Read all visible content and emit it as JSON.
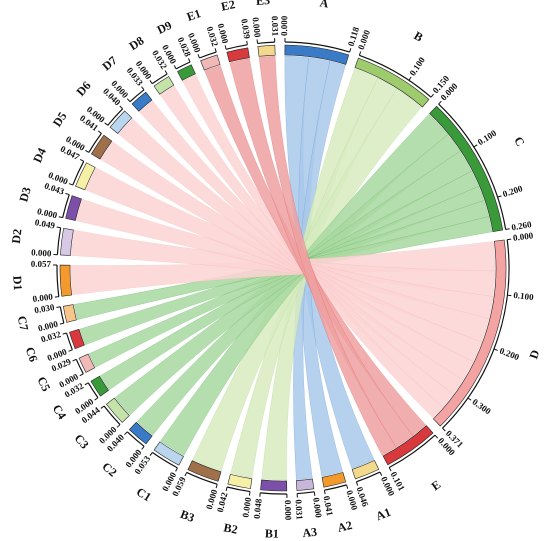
{
  "chart_data": {
    "type": "chord",
    "title": "",
    "layout": "single circle, clockwise from top; big groups A-E on the right, sub-indicators A1-E3 on the left",
    "groups": [
      {
        "name": "A",
        "color": "#3a7bc8",
        "fill": "#a9c9ea",
        "range": [
          0.0,
          0.118
        ],
        "ticks": [
          "0.000",
          "0.118"
        ],
        "major": true
      },
      {
        "name": "B",
        "color": "#9ecb6b",
        "fill": "#d7ebbf",
        "range": [
          0.0,
          0.15
        ],
        "ticks": [
          "0.000",
          "0.100",
          "0.150"
        ],
        "major": true
      },
      {
        "name": "C",
        "color": "#3a9a3a",
        "fill": "#a8d8a0",
        "range": [
          0.0,
          0.26
        ],
        "ticks": [
          "0.000",
          "0.100",
          "0.200",
          "0.260"
        ],
        "major": true
      },
      {
        "name": "D",
        "color": "#f4a3a3",
        "fill": "#fbd3d3",
        "range": [
          0.0,
          0.371
        ],
        "ticks": [
          "0.000",
          "0.100",
          "0.200",
          "0.300",
          "0.371"
        ],
        "major": true
      },
      {
        "name": "E",
        "color": "#d8393c",
        "fill": "#efa0a0",
        "range": [
          0.0,
          0.101
        ],
        "ticks": [
          "0.000",
          "0.101"
        ],
        "major": true
      },
      {
        "name": "A1",
        "color": "#f3d98c",
        "parent": "A",
        "range": [
          0.0,
          0.046
        ],
        "ticks": [
          "0.000",
          "0.046"
        ]
      },
      {
        "name": "A2",
        "color": "#f29a2e",
        "parent": "A",
        "range": [
          0.0,
          0.041
        ],
        "ticks": [
          "0.000",
          "0.041"
        ]
      },
      {
        "name": "A3",
        "color": "#c9b7d9",
        "parent": "A",
        "range": [
          0.0,
          0.031
        ],
        "ticks": [
          "0.000",
          "0.031"
        ]
      },
      {
        "name": "B1",
        "color": "#7c4fa8",
        "parent": "B",
        "range": [
          0.0,
          0.048
        ],
        "ticks": [
          "0.000",
          "0.048"
        ]
      },
      {
        "name": "B2",
        "color": "#f6efa6",
        "parent": "B",
        "range": [
          0.0,
          0.042
        ],
        "ticks": [
          "0.000",
          "0.042"
        ]
      },
      {
        "name": "B3",
        "color": "#a0704a",
        "parent": "B",
        "range": [
          0.0,
          0.059
        ],
        "ticks": [
          "0.000",
          "0.059"
        ]
      },
      {
        "name": "C1",
        "color": "#b9d6ee",
        "parent": "C",
        "range": [
          0.0,
          0.053
        ],
        "ticks": [
          "0.000",
          "0.053"
        ]
      },
      {
        "name": "C2",
        "color": "#3a7bc8",
        "parent": "C",
        "range": [
          0.0,
          0.04
        ],
        "ticks": [
          "0.000",
          "0.040"
        ]
      },
      {
        "name": "C3",
        "color": "#c3e3a8",
        "parent": "C",
        "range": [
          0.0,
          0.044
        ],
        "ticks": [
          "0.000",
          "0.044"
        ]
      },
      {
        "name": "C4",
        "color": "#3a9a3a",
        "parent": "C",
        "range": [
          0.0,
          0.032
        ],
        "ticks": [
          "0.000",
          "0.032"
        ]
      },
      {
        "name": "C5",
        "color": "#f1b8b8",
        "parent": "C",
        "range": [
          0.0,
          0.029
        ],
        "ticks": [
          "0.000",
          "0.029"
        ]
      },
      {
        "name": "C6",
        "color": "#d8393c",
        "parent": "C",
        "range": [
          0.0,
          0.032
        ],
        "ticks": [
          "0.000",
          "0.032"
        ]
      },
      {
        "name": "C7",
        "color": "#f7c48a",
        "parent": "C",
        "range": [
          0.0,
          0.03
        ],
        "ticks": [
          "0.000",
          "0.030"
        ]
      },
      {
        "name": "D1",
        "color": "#f29a2e",
        "parent": "D",
        "range": [
          0.0,
          0.057
        ],
        "ticks": [
          "0.000",
          "0.057"
        ]
      },
      {
        "name": "D2",
        "color": "#d7c8e6",
        "parent": "D",
        "range": [
          0.0,
          0.049
        ],
        "ticks": [
          "0.000",
          "0.049"
        ]
      },
      {
        "name": "D3",
        "color": "#7c4fa8",
        "parent": "D",
        "range": [
          0.0,
          0.043
        ],
        "ticks": [
          "0.000",
          "0.043"
        ]
      },
      {
        "name": "D4",
        "color": "#f6efa6",
        "parent": "D",
        "range": [
          0.0,
          0.047
        ],
        "ticks": [
          "0.000",
          "0.047"
        ]
      },
      {
        "name": "D5",
        "color": "#a0704a",
        "parent": "D",
        "range": [
          0.0,
          0.041
        ],
        "ticks": [
          "0.000",
          "0.041"
        ]
      },
      {
        "name": "D6",
        "color": "#b9d6ee",
        "parent": "D",
        "range": [
          0.0,
          0.04
        ],
        "ticks": [
          "0.000",
          "0.040"
        ]
      },
      {
        "name": "D7",
        "color": "#3a7bc8",
        "parent": "D",
        "range": [
          0.0,
          0.033
        ],
        "ticks": [
          "0.000",
          "0.033"
        ]
      },
      {
        "name": "D8",
        "color": "#c3e3a8",
        "parent": "D",
        "range": [
          0.0,
          0.032
        ],
        "ticks": [
          "0.000",
          "0.032"
        ]
      },
      {
        "name": "D9",
        "color": "#3a9a3a",
        "parent": "D",
        "range": [
          0.0,
          0.028
        ],
        "ticks": [
          "0.000",
          "0.028"
        ]
      },
      {
        "name": "E1",
        "color": "#f1b8b8",
        "parent": "E",
        "range": [
          0.0,
          0.032
        ],
        "ticks": [
          "0.000",
          "0.032"
        ]
      },
      {
        "name": "E2",
        "color": "#d8393c",
        "parent": "E",
        "range": [
          0.0,
          0.039
        ],
        "ticks": [
          "0.000",
          "0.039"
        ]
      },
      {
        "name": "E3",
        "color": "#f3d98c",
        "parent": "E",
        "range": [
          0.0,
          0.031
        ],
        "ticks": [
          "0.000",
          "0.031"
        ]
      }
    ]
  }
}
